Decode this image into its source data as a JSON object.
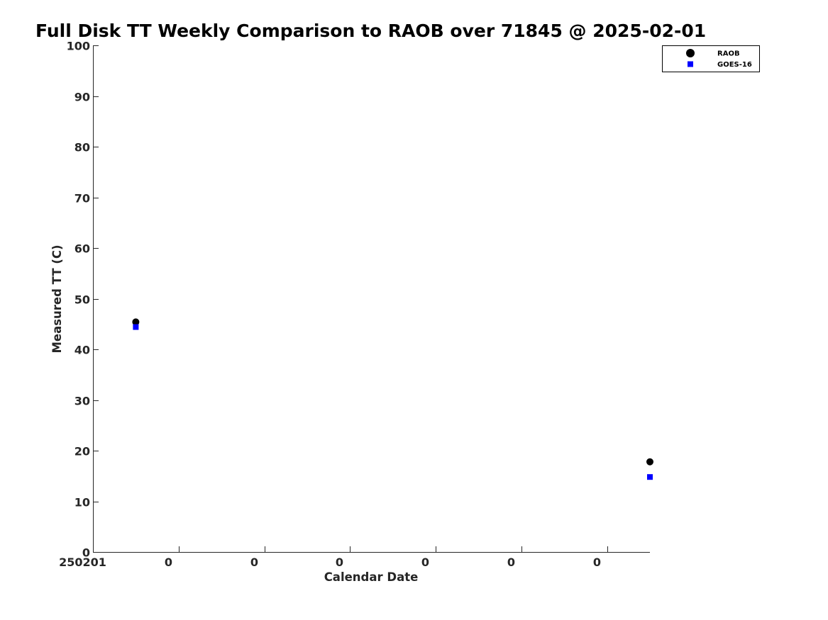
{
  "chart_data": {
    "type": "scatter",
    "title": "Full Disk TT Weekly Comparison to RAOB over 71845 @ 2025-02-01",
    "xlabel": "Calendar Date",
    "ylabel": "Measured TT (C)",
    "ylim": [
      0,
      100
    ],
    "yticks": [
      0,
      10,
      20,
      30,
      40,
      50,
      60,
      70,
      80,
      90,
      100
    ],
    "xlim": [
      0,
      6.5
    ],
    "xticks": [
      0,
      1,
      2,
      3,
      4,
      5,
      6
    ],
    "xtick_labels": [
      "250201",
      "0",
      "0",
      "0",
      "0",
      "0",
      "0"
    ],
    "legend_position": "top-right",
    "series": [
      {
        "name": "RAOB",
        "marker": "circle",
        "color": "#000000",
        "x": [
          0.5,
          6.5
        ],
        "y": [
          45.4,
          17.8
        ]
      },
      {
        "name": "GOES-16",
        "marker": "square",
        "color": "#0000ff",
        "x": [
          0.5,
          6.5
        ],
        "y": [
          44.4,
          14.8
        ]
      }
    ]
  }
}
